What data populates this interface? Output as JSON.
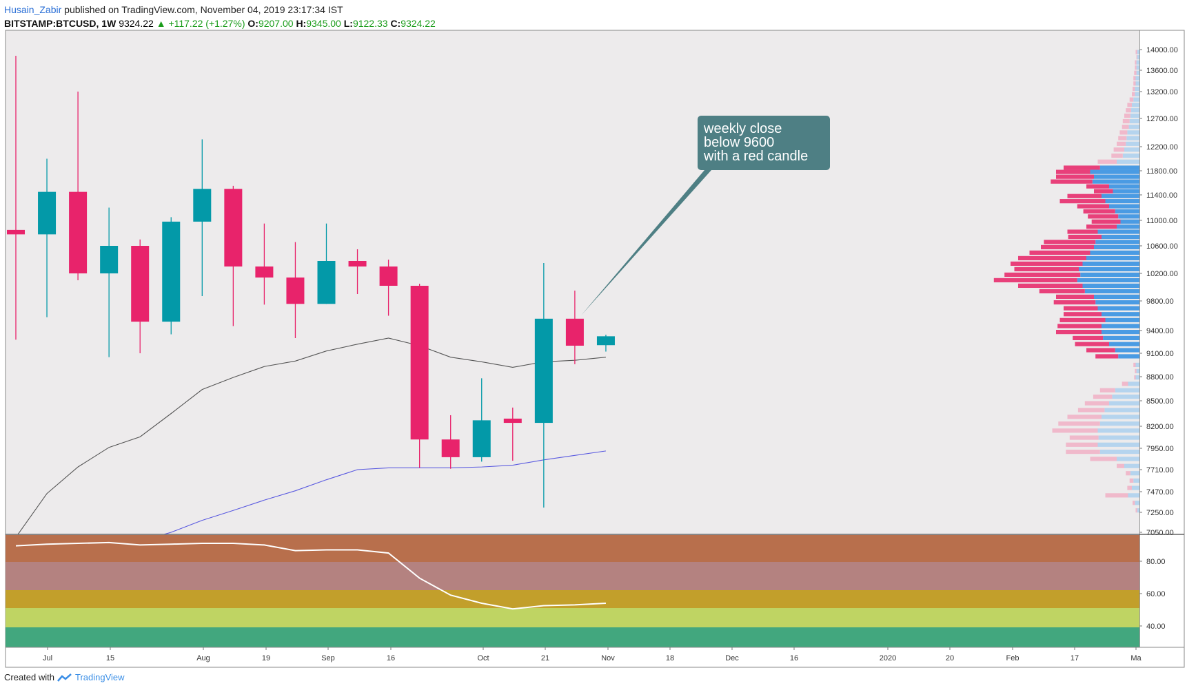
{
  "header": {
    "author": "Husain_Zabir",
    "published_text": "published on TradingView.com, November 04, 2019 23:17:34 IST",
    "symbol": "BITSTAMP:BTCUSD, 1W",
    "price": "9324.22",
    "change": "+117.22 (+1.27%)",
    "o_label": "O:",
    "o_value": "9207.00",
    "h_label": "H:",
    "h_value": "9345.00",
    "l_label": "L:",
    "l_value": "9122.33",
    "c_label": "C:",
    "c_value": "9324.22"
  },
  "footer": {
    "created_with": "Created with",
    "brand": "TradingView"
  },
  "annotation": {
    "lines": [
      "weekly close",
      "below 9600",
      "with a red candle"
    ]
  },
  "colors": {
    "up": "#0399a8",
    "down": "#e8236b",
    "bg": "#edebec",
    "ema": "#555555",
    "sma": "#5a5ae0",
    "callout": "#4e7f84",
    "vp_up": "#4a9be3",
    "vp_down": "#e8407a",
    "rsi_bands": [
      "#b86f4c",
      "#b48280",
      "#c29f2b",
      "#bfd463",
      "#42a77e"
    ],
    "rsi_line": "#ffffff"
  },
  "chart_data": {
    "type": "candlestick",
    "timeframe": "1W",
    "x_tick_labels": [
      "Jul",
      "15",
      "Aug",
      "19",
      "Sep",
      "16",
      "Oct",
      "21",
      "Nov",
      "18",
      "Dec",
      "16",
      "2020",
      "20",
      "Feb",
      "17",
      "Ma"
    ],
    "y_tick_labels": [
      "14000.00",
      "13600.00",
      "13200.00",
      "12700.00",
      "12200.00",
      "11800.00",
      "11400.00",
      "11000.00",
      "10600.00",
      "10200.00",
      "9800.00",
      "9400.00",
      "9100.00",
      "8800.00",
      "8500.00",
      "8200.00",
      "7950.00",
      "7710.00",
      "7470.00",
      "7250.00",
      "7050.00"
    ],
    "candles": [
      {
        "o": 10850,
        "h": 13880,
        "l": 9280,
        "c": 10780
      },
      {
        "o": 10780,
        "h": 12000,
        "l": 9580,
        "c": 11450
      },
      {
        "o": 11450,
        "h": 13200,
        "l": 10100,
        "c": 10200
      },
      {
        "o": 10200,
        "h": 11200,
        "l": 9050,
        "c": 10600
      },
      {
        "o": 10600,
        "h": 10700,
        "l": 9100,
        "c": 9520
      },
      {
        "o": 9520,
        "h": 11050,
        "l": 9350,
        "c": 10980
      },
      {
        "o": 10980,
        "h": 12330,
        "l": 9870,
        "c": 11500
      },
      {
        "o": 11500,
        "h": 11550,
        "l": 9460,
        "c": 10300
      },
      {
        "o": 10300,
        "h": 10950,
        "l": 9750,
        "c": 10140
      },
      {
        "o": 10140,
        "h": 10660,
        "l": 9300,
        "c": 9760
      },
      {
        "o": 9760,
        "h": 10950,
        "l": 9760,
        "c": 10380
      },
      {
        "o": 10380,
        "h": 10550,
        "l": 9900,
        "c": 10300
      },
      {
        "o": 10300,
        "h": 10400,
        "l": 9600,
        "c": 10020
      },
      {
        "o": 10020,
        "h": 10050,
        "l": 7730,
        "c": 8050
      },
      {
        "o": 8050,
        "h": 8330,
        "l": 7720,
        "c": 7850
      },
      {
        "o": 7850,
        "h": 8780,
        "l": 7800,
        "c": 8270
      },
      {
        "o": 8290,
        "h": 8420,
        "l": 7810,
        "c": 8240
      },
      {
        "o": 8240,
        "h": 10350,
        "l": 7300,
        "c": 9560
      },
      {
        "o": 9560,
        "h": 9950,
        "l": 8960,
        "c": 9200
      },
      {
        "o": 9207,
        "h": 9345,
        "l": 9122.33,
        "c": 9324.22
      }
    ],
    "ema": [
      7000,
      7450,
      7740,
      7960,
      8080,
      8350,
      8640,
      8790,
      8930,
      9000,
      9130,
      9220,
      9300,
      9200,
      9050,
      8990,
      8920,
      8990,
      9010,
      9050
    ],
    "sma": [
      6350,
      6500,
      6700,
      6860,
      6960,
      7050,
      7170,
      7270,
      7380,
      7480,
      7600,
      7710,
      7730,
      7730,
      7730,
      7740,
      7760,
      7820,
      7870,
      7920
    ],
    "y_range": [
      7050,
      14200
    ],
    "rsi": {
      "tick_labels": [
        "80.00",
        "60.00",
        "40.00"
      ],
      "range": [
        25,
        100
      ],
      "values": [
        94,
        95,
        95.5,
        96,
        94.5,
        95,
        95.5,
        95.5,
        94.5,
        91,
        91.5,
        91.5,
        89.5,
        74,
        63.5,
        58.5,
        55,
        57,
        57.5,
        58.5
      ]
    },
    "volume_profile": [
      {
        "price": 13950,
        "up": 3,
        "down": 2
      },
      {
        "price": 13850,
        "up": 3,
        "down": 1
      },
      {
        "price": 13750,
        "up": 4,
        "down": 2
      },
      {
        "price": 13650,
        "up": 4,
        "down": 2
      },
      {
        "price": 13550,
        "up": 4,
        "down": 3
      },
      {
        "price": 13450,
        "up": 5,
        "down": 3
      },
      {
        "price": 13350,
        "up": 5,
        "down": 3
      },
      {
        "price": 13250,
        "up": 6,
        "down": 3
      },
      {
        "price": 13150,
        "up": 6,
        "down": 4
      },
      {
        "price": 13050,
        "up": 8,
        "down": 5
      },
      {
        "price": 12950,
        "up": 10,
        "down": 6
      },
      {
        "price": 12850,
        "up": 11,
        "down": 7
      },
      {
        "price": 12750,
        "up": 12,
        "down": 8
      },
      {
        "price": 12650,
        "up": 13,
        "down": 9
      },
      {
        "price": 12550,
        "up": 14,
        "down": 9
      },
      {
        "price": 12450,
        "up": 16,
        "down": 10
      },
      {
        "price": 12350,
        "up": 17,
        "down": 11
      },
      {
        "price": 12250,
        "up": 18,
        "down": 12
      },
      {
        "price": 12150,
        "up": 20,
        "down": 14
      },
      {
        "price": 12050,
        "up": 22,
        "down": 15
      },
      {
        "price": 11950,
        "up": 30,
        "down": 25
      },
      {
        "price": 11850,
        "up": 52,
        "down": 48
      },
      {
        "price": 11780,
        "up": 65,
        "down": 45
      },
      {
        "price": 11700,
        "up": 60,
        "down": 50
      },
      {
        "price": 11620,
        "up": 62,
        "down": 55
      },
      {
        "price": 11540,
        "up": 40,
        "down": 30
      },
      {
        "price": 11460,
        "up": 35,
        "down": 25
      },
      {
        "price": 11380,
        "up": 50,
        "down": 45
      },
      {
        "price": 11300,
        "up": 45,
        "down": 60
      },
      {
        "price": 11220,
        "up": 40,
        "down": 42
      },
      {
        "price": 11140,
        "up": 32,
        "down": 42
      },
      {
        "price": 11060,
        "up": 28,
        "down": 40
      },
      {
        "price": 10980,
        "up": 25,
        "down": 38
      },
      {
        "price": 10900,
        "up": 30,
        "down": 40
      },
      {
        "price": 10820,
        "up": 55,
        "down": 40
      },
      {
        "price": 10740,
        "up": 50,
        "down": 44
      },
      {
        "price": 10660,
        "up": 58,
        "down": 68
      },
      {
        "price": 10580,
        "up": 60,
        "down": 70
      },
      {
        "price": 10500,
        "up": 65,
        "down": 80
      },
      {
        "price": 10420,
        "up": 70,
        "down": 90
      },
      {
        "price": 10340,
        "up": 75,
        "down": 95
      },
      {
        "price": 10260,
        "up": 80,
        "down": 85
      },
      {
        "price": 10180,
        "up": 78,
        "down": 100
      },
      {
        "price": 10100,
        "up": 82,
        "down": 110
      },
      {
        "price": 10020,
        "up": 75,
        "down": 85
      },
      {
        "price": 9940,
        "up": 72,
        "down": 60
      },
      {
        "price": 9860,
        "up": 60,
        "down": 50
      },
      {
        "price": 9780,
        "up": 58,
        "down": 55
      },
      {
        "price": 9700,
        "up": 55,
        "down": 45
      },
      {
        "price": 9620,
        "up": 50,
        "down": 50
      },
      {
        "price": 9540,
        "up": 45,
        "down": 60
      },
      {
        "price": 9460,
        "up": 50,
        "down": 58
      },
      {
        "price": 9380,
        "up": 50,
        "down": 60
      },
      {
        "price": 9300,
        "up": 48,
        "down": 40
      },
      {
        "price": 9220,
        "up": 40,
        "down": 45
      },
      {
        "price": 9140,
        "up": 32,
        "down": 38
      },
      {
        "price": 9060,
        "up": 28,
        "down": 30
      },
      {
        "price": 8950,
        "up": 5,
        "down": 3
      },
      {
        "price": 8870,
        "up": 4,
        "down": 2
      },
      {
        "price": 8790,
        "up": 5,
        "down": 2
      },
      {
        "price": 8710,
        "up": 15,
        "down": 8
      },
      {
        "price": 8630,
        "up": 32,
        "down": 20
      },
      {
        "price": 8550,
        "up": 36,
        "down": 25
      },
      {
        "price": 8470,
        "up": 40,
        "down": 32
      },
      {
        "price": 8390,
        "up": 46,
        "down": 35
      },
      {
        "price": 8310,
        "up": 50,
        "down": 45
      },
      {
        "price": 8230,
        "up": 52,
        "down": 55
      },
      {
        "price": 8150,
        "up": 55,
        "down": 60
      },
      {
        "price": 8070,
        "up": 54,
        "down": 38
      },
      {
        "price": 7990,
        "up": 55,
        "down": 42
      },
      {
        "price": 7910,
        "up": 52,
        "down": 45
      },
      {
        "price": 7830,
        "up": 30,
        "down": 35
      },
      {
        "price": 7750,
        "up": 20,
        "down": 10
      },
      {
        "price": 7670,
        "up": 12,
        "down": 6
      },
      {
        "price": 7590,
        "up": 8,
        "down": 5
      },
      {
        "price": 7510,
        "up": 10,
        "down": 6
      },
      {
        "price": 7430,
        "up": 15,
        "down": 30
      },
      {
        "price": 7350,
        "up": 6,
        "down": 3
      },
      {
        "price": 7270,
        "up": 3,
        "down": 2
      }
    ]
  }
}
